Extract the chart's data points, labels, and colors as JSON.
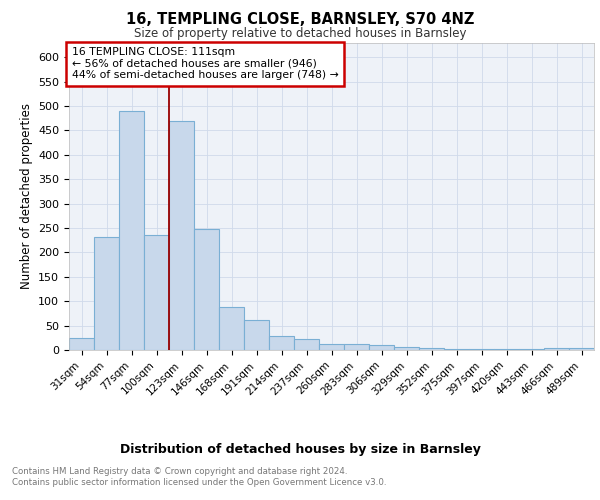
{
  "title": "16, TEMPLING CLOSE, BARNSLEY, S70 4NZ",
  "subtitle": "Size of property relative to detached houses in Barnsley",
  "xlabel": "Distribution of detached houses by size in Barnsley",
  "ylabel": "Number of detached properties",
  "categories": [
    "31sqm",
    "54sqm",
    "77sqm",
    "100sqm",
    "123sqm",
    "146sqm",
    "168sqm",
    "191sqm",
    "214sqm",
    "237sqm",
    "260sqm",
    "283sqm",
    "306sqm",
    "329sqm",
    "352sqm",
    "375sqm",
    "397sqm",
    "420sqm",
    "443sqm",
    "466sqm",
    "489sqm"
  ],
  "values": [
    25,
    232,
    490,
    235,
    470,
    248,
    88,
    62,
    29,
    22,
    13,
    12,
    10,
    7,
    4,
    3,
    2,
    3,
    2,
    5,
    4
  ],
  "bar_color": "#c8d8eb",
  "bar_edge_color": "#7aafd4",
  "vline_x": 3.5,
  "vline_color": "#990000",
  "annotation_text": "16 TEMPLING CLOSE: 111sqm\n← 56% of detached houses are smaller (946)\n44% of semi-detached houses are larger (748) →",
  "annotation_box_color": "white",
  "annotation_box_edge": "#cc0000",
  "footer_text": "Contains HM Land Registry data © Crown copyright and database right 2024.\nContains public sector information licensed under the Open Government Licence v3.0.",
  "ylim": [
    0,
    630
  ],
  "yticks": [
    0,
    50,
    100,
    150,
    200,
    250,
    300,
    350,
    400,
    450,
    500,
    550,
    600
  ],
  "grid_color": "#d0daea",
  "background_color": "#eef2f8"
}
